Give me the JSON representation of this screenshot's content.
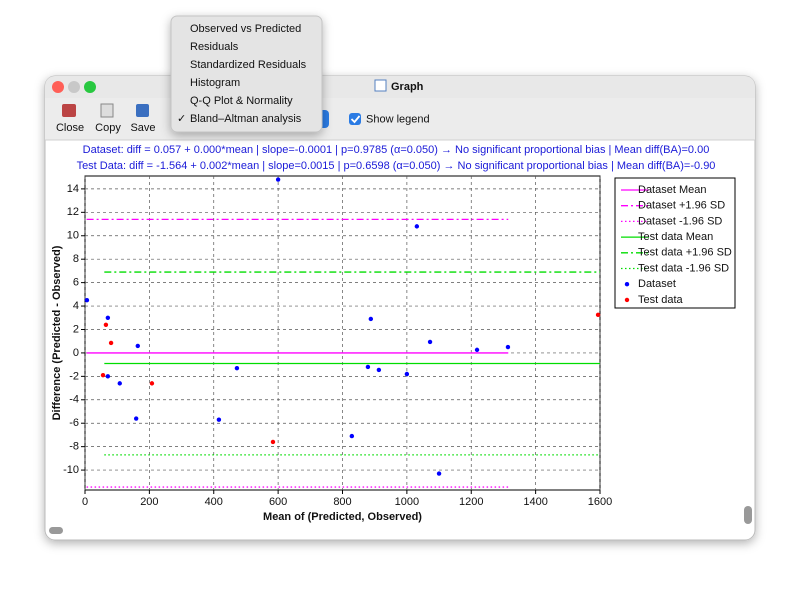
{
  "window": {
    "title": "Graph"
  },
  "toolbar": {
    "buttons": [
      "Close",
      "Copy",
      "Save"
    ],
    "checkbox": "Show legend",
    "checkbox_checked": true
  },
  "menu": {
    "items": [
      "Observed vs Predicted",
      "Residuals",
      "Standardized Residuals",
      "Histogram",
      "Q-Q Plot & Normality",
      "Bland–Altman analysis"
    ],
    "checked_index": 5,
    "check": "✓"
  },
  "chart": {
    "type": "scatter",
    "annotations": [
      "Dataset: diff = 0.057 + 0.000*mean | slope=-0.0001 | p=0.9785 (α=0.050) → No significant proportional bias | Mean diff(BA)=0.00",
      "Test Data: diff = -1.564 + 0.002*mean | slope=0.0015 | p=0.6598 (α=0.050) → No significant proportional bias | Mean diff(BA)=-0.90"
    ],
    "xlabel": "Mean of (Predicted, Observed)",
    "ylabel": "Difference (Predicted - Observed)",
    "xlim": [
      0,
      1600
    ],
    "ylim": [
      -11.7,
      15.1
    ],
    "xticks": [
      0,
      200,
      400,
      600,
      800,
      1000,
      1200,
      1400,
      1600
    ],
    "yticks": [
      -10,
      -8,
      -6,
      -4,
      -2,
      0,
      2,
      4,
      6,
      8,
      10,
      12,
      14
    ],
    "grid": true,
    "legend": "right",
    "series": [
      {
        "name": "Dataset Mean",
        "type": "hline",
        "style": "solid",
        "color": "#ff00ff",
        "value": 0.0,
        "x": [
          5,
          1315
        ]
      },
      {
        "name": "Dataset +1.96 SD",
        "type": "hline",
        "style": "dashdot",
        "color": "#ff00ff",
        "value": 11.4,
        "x": [
          5,
          1315
        ]
      },
      {
        "name": "Dataset -1.96 SD",
        "type": "hline",
        "style": "dotted",
        "color": "#ff00ff",
        "value": -11.45,
        "x": [
          5,
          1315
        ]
      },
      {
        "name": "Test data Mean",
        "type": "hline",
        "style": "solid",
        "color": "#00dd00",
        "value": -0.9,
        "x": [
          60,
          1600
        ]
      },
      {
        "name": "Test data +1.96 SD",
        "type": "hline",
        "style": "dashdot",
        "color": "#00dd00",
        "value": 6.9,
        "x": [
          60,
          1600
        ]
      },
      {
        "name": "Test data -1.96 SD",
        "type": "hline",
        "style": "dotted",
        "color": "#00dd00",
        "value": -8.7,
        "x": [
          60,
          1600
        ]
      },
      {
        "name": "Dataset",
        "type": "scatter",
        "color": "#0000ff",
        "x": [
          6,
          71,
          71,
          108,
          164,
          159,
          472,
          416,
          600,
          829,
          888,
          879,
          913,
          1000,
          1031,
          1072,
          1100,
          1218,
          1314
        ],
        "values": [
          4.5,
          3.0,
          -2.0,
          -2.6,
          0.6,
          -5.6,
          -1.3,
          -5.7,
          14.8,
          -7.1,
          2.9,
          -1.2,
          -1.45,
          -1.8,
          10.8,
          0.94,
          -10.3,
          0.26,
          0.5
        ]
      },
      {
        "name": "Test data",
        "type": "scatter",
        "color": "#ff0000",
        "x": [
          65,
          81,
          56,
          208,
          584,
          1594
        ],
        "values": [
          2.4,
          0.85,
          -1.9,
          -2.6,
          -7.6,
          3.25
        ]
      }
    ]
  }
}
